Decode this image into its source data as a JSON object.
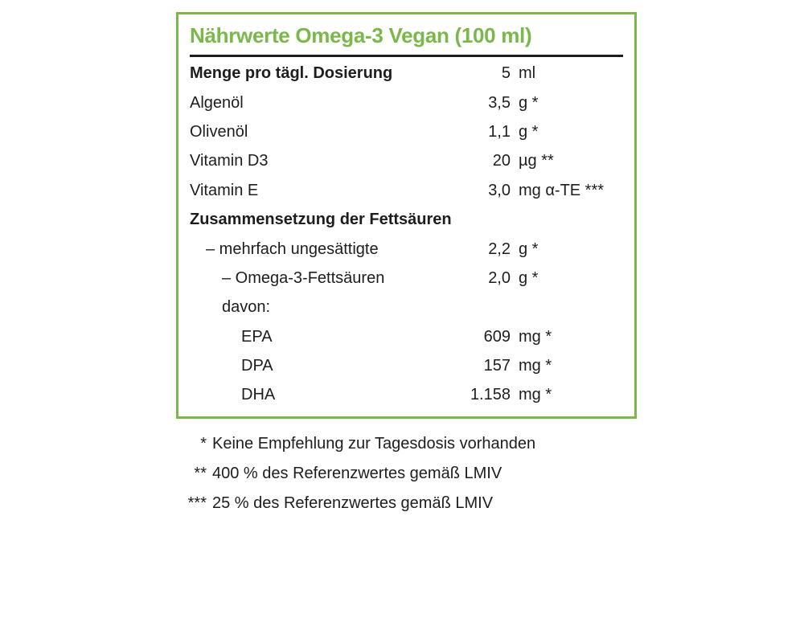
{
  "colors": {
    "accent_green": "#7ab849",
    "text": "#1d1d1b"
  },
  "table": {
    "title": "Nährwerte Omega-3 Vegan (100 ml)",
    "rows": [
      {
        "label": "Menge pro tägl. Dosierung",
        "value": "5",
        "unit": "ml",
        "bold": true,
        "indent": 0
      },
      {
        "label": "Algenöl",
        "value": "3,5",
        "unit": "g *",
        "bold": false,
        "indent": 0
      },
      {
        "label": "Olivenöl",
        "value": "1,1",
        "unit": "g *",
        "bold": false,
        "indent": 0
      },
      {
        "label": "Vitamin D3",
        "value": "20",
        "unit": "µg **",
        "bold": false,
        "indent": 0
      },
      {
        "label": "Vitamin E",
        "value": "3,0",
        "unit": "mg α-TE ***",
        "bold": false,
        "indent": 0
      },
      {
        "label": "Zusammensetzung der Fettsäuren",
        "value": "",
        "unit": "",
        "bold": true,
        "indent": 0
      },
      {
        "label": "– mehrfach ungesättigte",
        "value": "2,2",
        "unit": "g *",
        "bold": false,
        "indent": 1
      },
      {
        "label": "– Omega-3-Fettsäuren",
        "value": "2,0",
        "unit": "g *",
        "bold": false,
        "indent": 2
      },
      {
        "label": "davon:",
        "value": "",
        "unit": "",
        "bold": false,
        "indent": 2
      },
      {
        "label": "EPA",
        "value": "609",
        "unit": "mg *",
        "bold": false,
        "indent": 3
      },
      {
        "label": "DPA",
        "value": "157",
        "unit": "mg *",
        "bold": false,
        "indent": 3
      },
      {
        "label": "DHA",
        "value": "1.158",
        "unit": "mg *",
        "bold": false,
        "indent": 3
      }
    ]
  },
  "footnotes": [
    {
      "symbol": "*",
      "text": "Keine Empfehlung zur Tagesdosis vorhanden"
    },
    {
      "symbol": "**",
      "text": "400 % des Referenzwertes gemäß LMIV"
    },
    {
      "symbol": "***",
      "text": "25 % des Referenzwertes gemäß LMIV"
    }
  ]
}
